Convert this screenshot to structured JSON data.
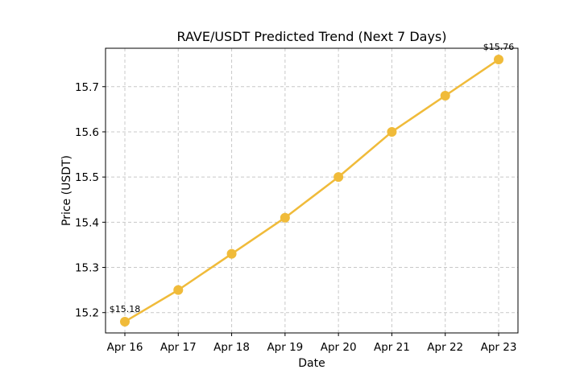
{
  "chart_data": {
    "type": "line",
    "title": "RAVE/USDT Predicted Trend (Next 7 Days)",
    "xlabel": "Date",
    "ylabel": "Price (USDT)",
    "categories": [
      "Apr 16",
      "Apr 17",
      "Apr 18",
      "Apr 19",
      "Apr 20",
      "Apr 21",
      "Apr 22",
      "Apr 23"
    ],
    "series": [
      {
        "values": [
          15.18,
          15.25,
          15.33,
          15.41,
          15.5,
          15.6,
          15.68,
          15.76
        ]
      }
    ],
    "ylim": [
      15.155,
      15.785
    ],
    "yticks": [
      15.2,
      15.3,
      15.4,
      15.5,
      15.6,
      15.7
    ],
    "ytick_labels": [
      "15.2",
      "15.3",
      "15.4",
      "15.5",
      "15.6",
      "15.7"
    ],
    "annotations": [
      {
        "index": 0,
        "text": "$15.18"
      },
      {
        "index": 7,
        "text": "$15.76"
      }
    ],
    "grid": true,
    "line_color": "#F0BB3A",
    "grid_color": "#c8c8c8"
  }
}
